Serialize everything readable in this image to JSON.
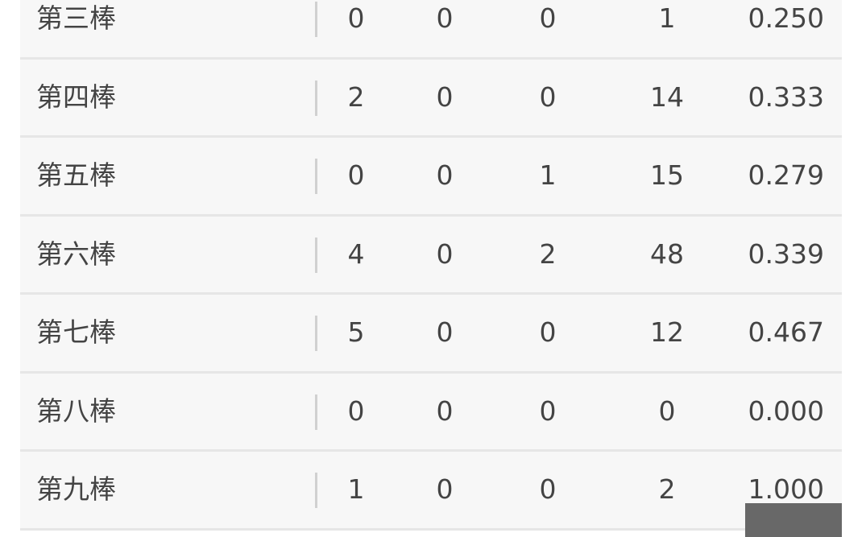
{
  "rows": [
    {
      "label": "第三棒",
      "values": [
        "0",
        "0",
        "0",
        "1",
        "0.250"
      ]
    },
    {
      "label": "第四棒",
      "values": [
        "2",
        "0",
        "0",
        "14",
        "0.333"
      ]
    },
    {
      "label": "第五棒",
      "values": [
        "0",
        "0",
        "1",
        "15",
        "0.279"
      ]
    },
    {
      "label": "第六棒",
      "values": [
        "4",
        "0",
        "2",
        "48",
        "0.339"
      ]
    },
    {
      "label": "第七棒",
      "values": [
        "5",
        "0",
        "0",
        "12",
        "0.467"
      ]
    },
    {
      "label": "第八棒",
      "values": [
        "0",
        "0",
        "0",
        "0",
        "0.000"
      ]
    },
    {
      "label": "第九棒",
      "values": [
        "1",
        "0",
        "0",
        "2",
        "1.000"
      ]
    }
  ],
  "colors": {
    "row_bg": "#f7f7f7",
    "separator": "#e6e6e6",
    "text": "#444444",
    "overlay": "#686868"
  }
}
